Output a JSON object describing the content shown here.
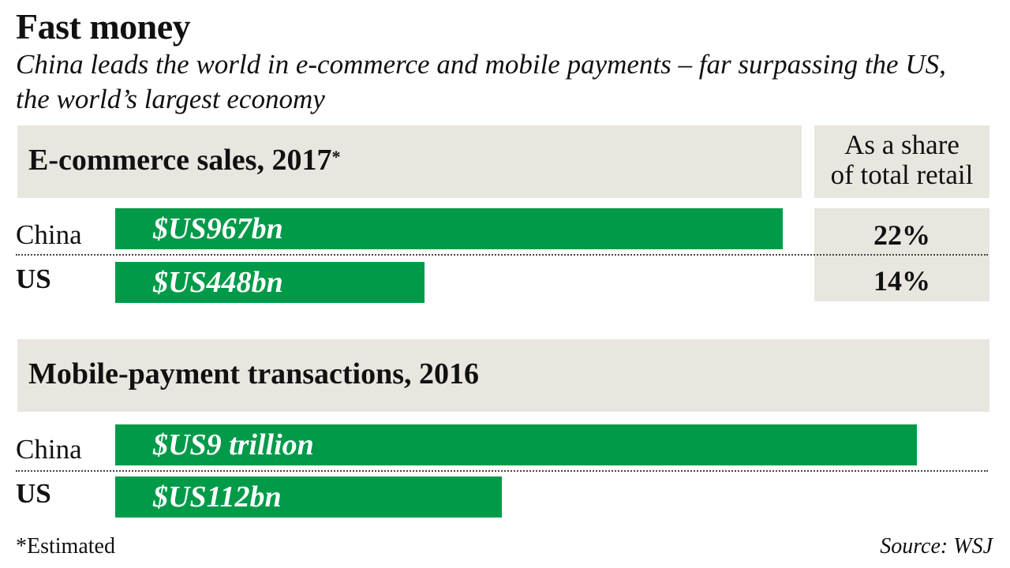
{
  "title": "Fast money",
  "subtitle": "China leads the world in e-commerce and mobile payments – far surpassing the US, the world’s largest economy",
  "footnote": "*Estimated",
  "source": "Source: WSJ",
  "colors": {
    "bar": "#009a49",
    "panel": "#e8e6df",
    "text": "#111111"
  },
  "chart_data": [
    {
      "type": "bar",
      "orientation": "horizontal",
      "title": "E-commerce sales, 2017",
      "title_marker": "*",
      "categories": [
        "China",
        "US"
      ],
      "values": [
        967,
        448
      ],
      "unit": "$US billion",
      "data_labels": [
        "$US967bn",
        "$US448bn"
      ],
      "share_header": "As a share\nof total retail",
      "share_of_total_retail": [
        "22%",
        "14%"
      ],
      "share_values": [
        22,
        14
      ]
    },
    {
      "type": "bar",
      "orientation": "horizontal",
      "title": "Mobile-payment transactions, 2016",
      "categories": [
        "China",
        "US"
      ],
      "values": [
        9000,
        112
      ],
      "unit": "$US billion",
      "data_labels": [
        "$US9 trillion",
        "$US112bn"
      ]
    }
  ]
}
